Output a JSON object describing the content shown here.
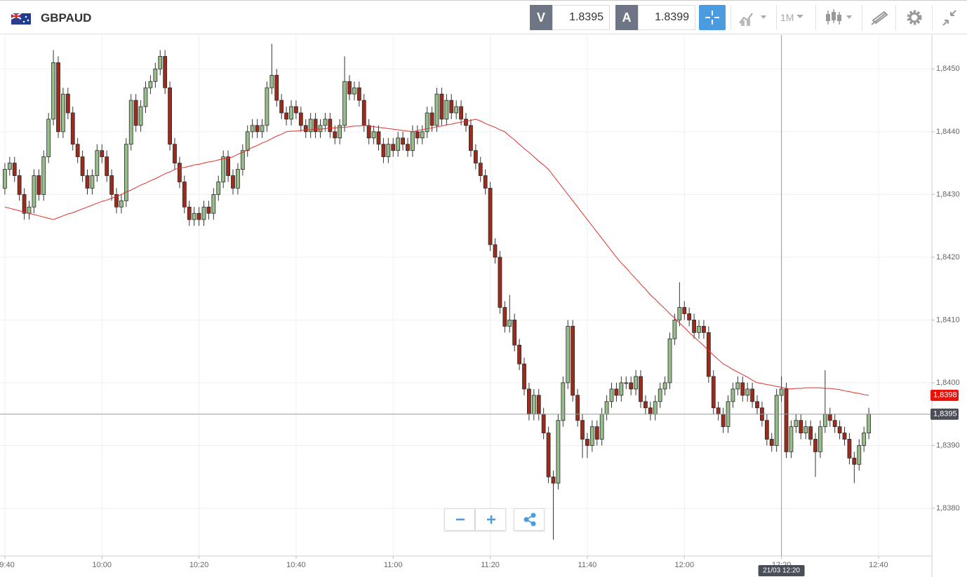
{
  "toolbar": {
    "symbol": "GBPAUD",
    "bid_label": "V",
    "bid": "1.8395",
    "ask_label": "A",
    "ask": "1.8399",
    "timeframe": "1M"
  },
  "chart_data": {
    "type": "candlestick",
    "x": [
      "09:40",
      "09:41",
      "09:42",
      "09:43",
      "09:44",
      "09:45",
      "09:46",
      "09:47",
      "09:48",
      "09:49",
      "09:50",
      "09:51",
      "09:52",
      "09:53",
      "09:54",
      "09:55",
      "09:56",
      "09:57",
      "09:58",
      "09:59",
      "10:00",
      "10:01",
      "10:02",
      "10:03",
      "10:04",
      "10:05",
      "10:06",
      "10:07",
      "10:08",
      "10:09",
      "10:10",
      "10:11",
      "10:12",
      "10:13",
      "10:14",
      "10:15",
      "10:16",
      "10:17",
      "10:18",
      "10:19",
      "10:20",
      "10:21",
      "10:22",
      "10:23",
      "10:24",
      "10:25",
      "10:26",
      "10:27",
      "10:28",
      "10:29",
      "10:30",
      "10:31",
      "10:32",
      "10:33",
      "10:34",
      "10:35",
      "10:36",
      "10:37",
      "10:38",
      "10:39",
      "10:40",
      "10:41",
      "10:42",
      "10:43",
      "10:44",
      "10:45",
      "10:46",
      "10:47",
      "10:48",
      "10:49",
      "10:50",
      "10:51",
      "10:52",
      "10:53",
      "10:54",
      "10:55",
      "10:56",
      "10:57",
      "10:58",
      "10:59",
      "11:00",
      "11:01",
      "11:02",
      "11:03",
      "11:04",
      "11:05",
      "11:06",
      "11:07",
      "11:08",
      "11:09",
      "11:10",
      "11:11",
      "11:12",
      "11:13",
      "11:14",
      "11:15",
      "11:16",
      "11:17",
      "11:18",
      "11:19",
      "11:20",
      "11:21",
      "11:22",
      "11:23",
      "11:24",
      "11:25",
      "11:26",
      "11:27",
      "11:28",
      "11:29",
      "11:30",
      "11:31",
      "11:32",
      "11:33",
      "11:34",
      "11:35",
      "11:36",
      "11:37",
      "11:38",
      "11:39",
      "11:40",
      "11:41",
      "11:42",
      "11:43",
      "11:44",
      "11:45",
      "11:46",
      "11:47",
      "11:48",
      "11:49",
      "11:50",
      "11:51",
      "11:52",
      "11:53",
      "11:54",
      "11:55",
      "11:56",
      "11:57",
      "11:58",
      "11:59",
      "12:00",
      "12:01",
      "12:02",
      "12:03",
      "12:04",
      "12:05",
      "12:06",
      "12:07",
      "12:08",
      "12:09",
      "12:10",
      "12:11",
      "12:12",
      "12:13",
      "12:14",
      "12:15",
      "12:16",
      "12:17",
      "12:18",
      "12:19",
      "12:20",
      "12:21",
      "12:22",
      "12:23",
      "12:24",
      "12:25",
      "12:26",
      "12:27",
      "12:28",
      "12:29",
      "12:30",
      "12:31",
      "12:32",
      "12:33",
      "12:34",
      "12:35",
      "12:36",
      "12:37",
      "12:38"
    ],
    "open": [
      1.8431,
      1.8434,
      1.8435,
      1.8433,
      1.843,
      1.8427,
      1.8428,
      1.8433,
      1.843,
      1.8436,
      1.8442,
      1.8451,
      1.844,
      1.8446,
      1.8443,
      1.8438,
      1.8436,
      1.8433,
      1.8431,
      1.8433,
      1.8437,
      1.8436,
      1.8433,
      1.843,
      1.8428,
      1.8429,
      1.8438,
      1.8445,
      1.8441,
      1.8444,
      1.8447,
      1.8448,
      1.845,
      1.8452,
      1.8447,
      1.8438,
      1.8435,
      1.8432,
      1.8428,
      1.8426,
      1.8427,
      1.8426,
      1.8428,
      1.8427,
      1.843,
      1.8432,
      1.8436,
      1.8433,
      1.8431,
      1.8434,
      1.8437,
      1.844,
      1.8441,
      1.844,
      1.8441,
      1.8447,
      1.8449,
      1.8445,
      1.8443,
      1.8442,
      1.8444,
      1.8443,
      1.8441,
      1.844,
      1.8442,
      1.844,
      1.8441,
      1.8442,
      1.844,
      1.8439,
      1.8441,
      1.8448,
      1.8446,
      1.8447,
      1.8445,
      1.8441,
      1.8439,
      1.844,
      1.8438,
      1.8436,
      1.8438,
      1.8437,
      1.8439,
      1.8438,
      1.8437,
      1.844,
      1.8439,
      1.844,
      1.8443,
      1.8441,
      1.8446,
      1.8442,
      1.8445,
      1.8443,
      1.8444,
      1.8442,
      1.8441,
      1.8437,
      1.8435,
      1.8433,
      1.8431,
      1.8422,
      1.842,
      1.8412,
      1.8409,
      1.841,
      1.8406,
      1.8403,
      1.8399,
      1.8395,
      1.8398,
      1.8395,
      1.8392,
      1.8385,
      1.8384,
      1.8394,
      1.84,
      1.8409,
      1.8398,
      1.8394,
      1.8391,
      1.839,
      1.8393,
      1.8391,
      1.8395,
      1.8397,
      1.8399,
      1.8398,
      1.84,
      1.84,
      1.8399,
      1.8401,
      1.8397,
      1.8396,
      1.8395,
      1.8397,
      1.8399,
      1.84,
      1.8407,
      1.841,
      1.8412,
      1.8411,
      1.841,
      1.8408,
      1.8409,
      1.8408,
      1.8401,
      1.8396,
      1.8395,
      1.8393,
      1.8397,
      1.8399,
      1.84,
      1.8398,
      1.8399,
      1.8397,
      1.8396,
      1.8394,
      1.8391,
      1.839,
      1.8398,
      1.8399,
      1.8389,
      1.8393,
      1.8394,
      1.8392,
      1.8393,
      1.8391,
      1.8389,
      1.8393,
      1.8395,
      1.8394,
      1.8393,
      1.8392,
      1.8391,
      1.8388,
      1.8387,
      1.839,
      1.8392
    ],
    "high": [
      1.8435,
      1.8436,
      1.8436,
      1.8434,
      1.8431,
      1.8429,
      1.8434,
      1.8434,
      1.8437,
      1.8443,
      1.8453,
      1.8452,
      1.8447,
      1.8447,
      1.8444,
      1.8439,
      1.8437,
      1.8434,
      1.8434,
      1.8438,
      1.8438,
      1.8437,
      1.8434,
      1.8431,
      1.843,
      1.8439,
      1.8446,
      1.8446,
      1.8445,
      1.8448,
      1.8449,
      1.8451,
      1.8453,
      1.8453,
      1.8448,
      1.8439,
      1.8436,
      1.8433,
      1.8429,
      1.8428,
      1.8428,
      1.8429,
      1.8429,
      1.8431,
      1.8433,
      1.8437,
      1.8437,
      1.8434,
      1.8435,
      1.8438,
      1.8441,
      1.8442,
      1.8442,
      1.8442,
      1.8448,
      1.8454,
      1.845,
      1.8446,
      1.8444,
      1.8445,
      1.8445,
      1.8444,
      1.8442,
      1.8443,
      1.8443,
      1.8442,
      1.8443,
      1.8443,
      1.8441,
      1.8442,
      1.8452,
      1.8449,
      1.8448,
      1.8448,
      1.8446,
      1.8442,
      1.8441,
      1.8441,
      1.8439,
      1.8439,
      1.8439,
      1.844,
      1.844,
      1.8439,
      1.8441,
      1.8441,
      1.8441,
      1.8444,
      1.8444,
      1.8447,
      1.8447,
      1.8446,
      1.8446,
      1.8445,
      1.8445,
      1.8443,
      1.8442,
      1.8438,
      1.8436,
      1.8434,
      1.8432,
      1.8423,
      1.8421,
      1.8413,
      1.8414,
      1.8411,
      1.8407,
      1.8404,
      1.84,
      1.8399,
      1.8399,
      1.8396,
      1.8393,
      1.8386,
      1.8395,
      1.8401,
      1.841,
      1.841,
      1.8399,
      1.8395,
      1.8392,
      1.8394,
      1.8394,
      1.8396,
      1.8398,
      1.84,
      1.84,
      1.8401,
      1.8401,
      1.8401,
      1.8402,
      1.8402,
      1.8398,
      1.8397,
      1.8398,
      1.84,
      1.8401,
      1.8408,
      1.8411,
      1.8416,
      1.8413,
      1.8412,
      1.8411,
      1.841,
      1.841,
      1.8409,
      1.8402,
      1.8397,
      1.8396,
      1.8398,
      1.84,
      1.8401,
      1.8401,
      1.84,
      1.84,
      1.8398,
      1.8397,
      1.8395,
      1.8392,
      1.8399,
      1.8401,
      1.84,
      1.8394,
      1.8395,
      1.8395,
      1.8394,
      1.8394,
      1.8392,
      1.8394,
      1.8402,
      1.8396,
      1.8395,
      1.8394,
      1.8393,
      1.8392,
      1.8389,
      1.8391,
      1.8393,
      1.8396
    ],
    "low": [
      1.843,
      1.8433,
      1.8432,
      1.8429,
      1.8426,
      1.8426,
      1.8427,
      1.8429,
      1.8429,
      1.8435,
      1.8441,
      1.8439,
      1.8439,
      1.8442,
      1.8437,
      1.8435,
      1.8432,
      1.843,
      1.843,
      1.8432,
      1.8435,
      1.8432,
      1.8429,
      1.8427,
      1.8427,
      1.8428,
      1.8437,
      1.844,
      1.844,
      1.8443,
      1.8446,
      1.8447,
      1.8449,
      1.8446,
      1.8437,
      1.8434,
      1.8431,
      1.8427,
      1.8425,
      1.8425,
      1.8425,
      1.8425,
      1.8426,
      1.8426,
      1.8429,
      1.8431,
      1.8432,
      1.843,
      1.843,
      1.8433,
      1.8436,
      1.8439,
      1.8439,
      1.8439,
      1.844,
      1.8446,
      1.8444,
      1.8442,
      1.8441,
      1.8441,
      1.8442,
      1.844,
      1.8439,
      1.8439,
      1.8439,
      1.8439,
      1.844,
      1.8439,
      1.8438,
      1.8438,
      1.844,
      1.8445,
      1.8445,
      1.8444,
      1.844,
      1.8438,
      1.8438,
      1.8437,
      1.8435,
      1.8435,
      1.8436,
      1.8436,
      1.8437,
      1.8436,
      1.8436,
      1.8438,
      1.8438,
      1.8439,
      1.844,
      1.844,
      1.8441,
      1.8441,
      1.8442,
      1.8442,
      1.8441,
      1.844,
      1.8436,
      1.8434,
      1.8432,
      1.843,
      1.8421,
      1.8419,
      1.8411,
      1.8408,
      1.8408,
      1.8405,
      1.8402,
      1.8398,
      1.8394,
      1.8394,
      1.8394,
      1.8391,
      1.8384,
      1.8375,
      1.8383,
      1.8393,
      1.8399,
      1.8397,
      1.8393,
      1.8388,
      1.8388,
      1.8389,
      1.839,
      1.839,
      1.8394,
      1.8396,
      1.8397,
      1.8397,
      1.8399,
      1.8398,
      1.8398,
      1.8396,
      1.8395,
      1.8394,
      1.8394,
      1.8396,
      1.8398,
      1.8399,
      1.8406,
      1.8409,
      1.841,
      1.8409,
      1.8407,
      1.8407,
      1.8407,
      1.84,
      1.8395,
      1.8394,
      1.8392,
      1.8392,
      1.8396,
      1.8398,
      1.8397,
      1.8397,
      1.8396,
      1.8395,
      1.8393,
      1.839,
      1.8389,
      1.8389,
      1.8397,
      1.8388,
      1.8388,
      1.8392,
      1.8391,
      1.8391,
      1.839,
      1.8385,
      1.8388,
      1.8392,
      1.8393,
      1.8392,
      1.8391,
      1.839,
      1.8387,
      1.8384,
      1.8386,
      1.8389,
      1.8391
    ],
    "close": [
      1.8434,
      1.8435,
      1.8433,
      1.843,
      1.8427,
      1.8428,
      1.8433,
      1.843,
      1.8436,
      1.8442,
      1.8451,
      1.844,
      1.8446,
      1.8443,
      1.8438,
      1.8436,
      1.8433,
      1.8431,
      1.8433,
      1.8437,
      1.8436,
      1.8433,
      1.843,
      1.8428,
      1.8429,
      1.8438,
      1.8445,
      1.8441,
      1.8444,
      1.8447,
      1.8448,
      1.845,
      1.8452,
      1.8447,
      1.8438,
      1.8435,
      1.8432,
      1.8428,
      1.8426,
      1.8427,
      1.8426,
      1.8428,
      1.8427,
      1.843,
      1.8432,
      1.8436,
      1.8433,
      1.8431,
      1.8434,
      1.8437,
      1.844,
      1.8441,
      1.844,
      1.8441,
      1.8447,
      1.8449,
      1.8445,
      1.8443,
      1.8442,
      1.8444,
      1.8443,
      1.8441,
      1.844,
      1.8442,
      1.844,
      1.8441,
      1.8442,
      1.844,
      1.8439,
      1.8441,
      1.8448,
      1.8446,
      1.8447,
      1.8445,
      1.8441,
      1.8439,
      1.844,
      1.8438,
      1.8436,
      1.8438,
      1.8437,
      1.8439,
      1.8438,
      1.8437,
      1.844,
      1.8439,
      1.844,
      1.8443,
      1.8441,
      1.8446,
      1.8442,
      1.8445,
      1.8443,
      1.8444,
      1.8442,
      1.8441,
      1.8437,
      1.8435,
      1.8433,
      1.8431,
      1.8422,
      1.842,
      1.8412,
      1.8409,
      1.841,
      1.8406,
      1.8403,
      1.8399,
      1.8395,
      1.8398,
      1.8395,
      1.8392,
      1.8385,
      1.8384,
      1.8394,
      1.84,
      1.8409,
      1.8398,
      1.8394,
      1.8391,
      1.839,
      1.8393,
      1.8391,
      1.8395,
      1.8397,
      1.8399,
      1.8398,
      1.84,
      1.84,
      1.8399,
      1.8401,
      1.8397,
      1.8396,
      1.8395,
      1.8397,
      1.8399,
      1.84,
      1.8407,
      1.841,
      1.8412,
      1.8411,
      1.841,
      1.8408,
      1.8409,
      1.8408,
      1.8401,
      1.8396,
      1.8395,
      1.8393,
      1.8397,
      1.8399,
      1.84,
      1.8398,
      1.8399,
      1.8397,
      1.8396,
      1.8394,
      1.8391,
      1.839,
      1.8398,
      1.8399,
      1.8389,
      1.8393,
      1.8394,
      1.8392,
      1.8393,
      1.8391,
      1.8389,
      1.8393,
      1.8395,
      1.8394,
      1.8393,
      1.8392,
      1.8391,
      1.8388,
      1.8387,
      1.839,
      1.8392,
      1.8395
    ],
    "up_color": "#97bd8a",
    "down_color": "#9c2b1c",
    "ma": {
      "color": "#e0302a",
      "values": [
        1.8428,
        1.84278,
        1.84276,
        1.84274,
        1.84272,
        1.8427,
        1.84268,
        1.84266,
        1.84264,
        1.84262,
        1.8426,
        1.84263,
        1.84266,
        1.84269,
        1.84271,
        1.84274,
        1.84277,
        1.8428,
        1.84283,
        1.84286,
        1.84289,
        1.84291,
        1.84294,
        1.84297,
        1.843,
        1.84304,
        1.84307,
        1.84311,
        1.84315,
        1.84318,
        1.84322,
        1.84325,
        1.84329,
        1.84333,
        1.84336,
        1.8434,
        1.84342,
        1.84343,
        1.84345,
        1.84347,
        1.84348,
        1.8435,
        1.84352,
        1.84353,
        1.84355,
        1.84357,
        1.84358,
        1.8436,
        1.84364,
        1.84367,
        1.84371,
        1.84375,
        1.84378,
        1.84382,
        1.84385,
        1.84389,
        1.84393,
        1.84396,
        1.844,
        1.84401,
        1.84401,
        1.84402,
        1.84403,
        1.84403,
        1.84404,
        1.84404,
        1.84405,
        1.84406,
        1.84406,
        1.84407,
        1.84407,
        1.84408,
        1.84409,
        1.84409,
        1.8441,
        1.84409,
        1.84408,
        1.84407,
        1.84406,
        1.84405,
        1.84404,
        1.84403,
        1.84402,
        1.84401,
        1.844,
        1.84402,
        1.84403,
        1.84405,
        1.84406,
        1.84408,
        1.84409,
        1.84411,
        1.84412,
        1.84414,
        1.84415,
        1.84417,
        1.84418,
        1.8442,
        1.84417,
        1.84413,
        1.8441,
        1.84407,
        1.84403,
        1.844,
        1.84393,
        1.84387,
        1.8438,
        1.84373,
        1.84367,
        1.8436,
        1.84353,
        1.84347,
        1.8434,
        1.8433,
        1.8432,
        1.8431,
        1.843,
        1.8429,
        1.8428,
        1.8427,
        1.8426,
        1.8425,
        1.8424,
        1.8423,
        1.8422,
        1.8421,
        1.842,
        1.84191,
        1.84183,
        1.84174,
        1.84166,
        1.84157,
        1.84149,
        1.8414,
        1.84133,
        1.84125,
        1.84118,
        1.8411,
        1.84103,
        1.84095,
        1.84088,
        1.8408,
        1.84073,
        1.84066,
        1.84059,
        1.84051,
        1.84044,
        1.84037,
        1.8403,
        1.84026,
        1.84021,
        1.84017,
        1.84013,
        1.84009,
        1.84004,
        1.84,
        1.83999,
        1.83997,
        1.83996,
        1.83994,
        1.83993,
        1.83991,
        1.8399,
        1.83991,
        1.83991,
        1.83992,
        1.83992,
        1.83992,
        1.83992,
        1.83991,
        1.83991,
        1.8399,
        1.83989,
        1.83987,
        1.83986,
        1.83984,
        1.83983,
        1.83981,
        1.8398
      ],
      "end_label": {
        "value": 1.8398,
        "label": "1,8398"
      }
    },
    "price_line": {
      "value": 1.8395,
      "label": "1,8395"
    },
    "crosshair": {
      "x": "12:20",
      "label": "21/03 12:20"
    },
    "xlim": [
      "09:39",
      "12:51"
    ],
    "xticks": [
      "09:40",
      "10:00",
      "10:20",
      "10:40",
      "11:00",
      "11:20",
      "11:40",
      "12:00",
      "12:20",
      "12:40"
    ],
    "ylim": [
      1.83724,
      1.84554
    ],
    "yticks": [
      {
        "value": 1.838,
        "label": "1,8380"
      },
      {
        "value": 1.839,
        "label": "1,8390"
      },
      {
        "value": 1.84,
        "label": "1,8400"
      },
      {
        "value": 1.841,
        "label": "1,8410"
      },
      {
        "value": 1.842,
        "label": "1,8420"
      },
      {
        "value": 1.843,
        "label": "1,8430"
      },
      {
        "value": 1.844,
        "label": "1,8440"
      },
      {
        "value": 1.845,
        "label": "1,8450"
      }
    ],
    "grid": true
  }
}
